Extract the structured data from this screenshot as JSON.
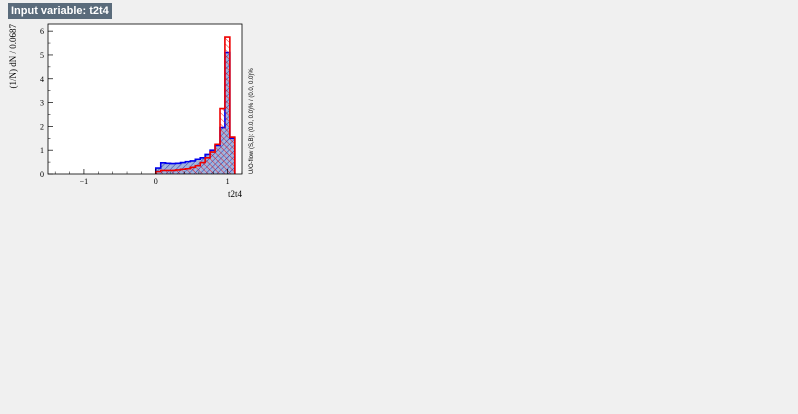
{
  "header": {
    "title": "Input variable: t2t4"
  },
  "chart_data": {
    "type": "bar",
    "title": "Input variable: t2t4",
    "xlabel": "t2t4",
    "ylabel": "(1/N) dN / 0.0687",
    "xlim": [
      -1.5,
      1.2
    ],
    "ylim": [
      0,
      6.3
    ],
    "x_ticks": [
      -1,
      0,
      1
    ],
    "y_ticks": [
      0,
      1,
      2,
      3,
      4,
      5,
      6
    ],
    "x_tick_labels": [
      "−1",
      "0",
      "1"
    ],
    "y_tick_labels": [
      "0",
      "1",
      "2",
      "3",
      "4",
      "5",
      "6"
    ],
    "bin_width": 0.0687,
    "overflow_note": "U/O-flow (S,B): (0.0, 0.0)% / (0.0, 0.0)%",
    "series": [
      {
        "color": "#0000ee",
        "fill": "#7d99d1",
        "values": [
          {
            "x0": 0.0,
            "x1": 0.069,
            "y": 0.25
          },
          {
            "x0": 0.069,
            "x1": 0.137,
            "y": 0.47
          },
          {
            "x0": 0.137,
            "x1": 0.206,
            "y": 0.45
          },
          {
            "x0": 0.206,
            "x1": 0.275,
            "y": 0.44
          },
          {
            "x0": 0.275,
            "x1": 0.344,
            "y": 0.45
          },
          {
            "x0": 0.344,
            "x1": 0.412,
            "y": 0.48
          },
          {
            "x0": 0.412,
            "x1": 0.481,
            "y": 0.52
          },
          {
            "x0": 0.481,
            "x1": 0.55,
            "y": 0.55
          },
          {
            "x0": 0.55,
            "x1": 0.619,
            "y": 0.62
          },
          {
            "x0": 0.619,
            "x1": 0.687,
            "y": 0.68
          },
          {
            "x0": 0.687,
            "x1": 0.756,
            "y": 0.82
          },
          {
            "x0": 0.756,
            "x1": 0.825,
            "y": 1.0
          },
          {
            "x0": 0.825,
            "x1": 0.894,
            "y": 1.2
          },
          {
            "x0": 0.894,
            "x1": 0.962,
            "y": 1.95
          },
          {
            "x0": 0.962,
            "x1": 1.031,
            "y": 5.1
          },
          {
            "x0": 1.031,
            "x1": 1.1,
            "y": 1.5
          }
        ]
      },
      {
        "color": "#ee0000",
        "fill": "#ee0000",
        "values": [
          {
            "x0": 0.0,
            "x1": 0.069,
            "y": 0.1
          },
          {
            "x0": 0.069,
            "x1": 0.137,
            "y": 0.15
          },
          {
            "x0": 0.137,
            "x1": 0.206,
            "y": 0.15
          },
          {
            "x0": 0.206,
            "x1": 0.275,
            "y": 0.15
          },
          {
            "x0": 0.275,
            "x1": 0.344,
            "y": 0.17
          },
          {
            "x0": 0.344,
            "x1": 0.412,
            "y": 0.2
          },
          {
            "x0": 0.412,
            "x1": 0.481,
            "y": 0.22
          },
          {
            "x0": 0.481,
            "x1": 0.55,
            "y": 0.28
          },
          {
            "x0": 0.55,
            "x1": 0.619,
            "y": 0.35
          },
          {
            "x0": 0.619,
            "x1": 0.687,
            "y": 0.48
          },
          {
            "x0": 0.687,
            "x1": 0.756,
            "y": 0.68
          },
          {
            "x0": 0.756,
            "x1": 0.825,
            "y": 0.92
          },
          {
            "x0": 0.825,
            "x1": 0.894,
            "y": 1.25
          },
          {
            "x0": 0.894,
            "x1": 0.962,
            "y": 2.75
          },
          {
            "x0": 0.962,
            "x1": 1.031,
            "y": 5.75
          },
          {
            "x0": 1.031,
            "x1": 1.1,
            "y": 1.55
          }
        ]
      }
    ],
    "grid": false,
    "legend": "none"
  }
}
